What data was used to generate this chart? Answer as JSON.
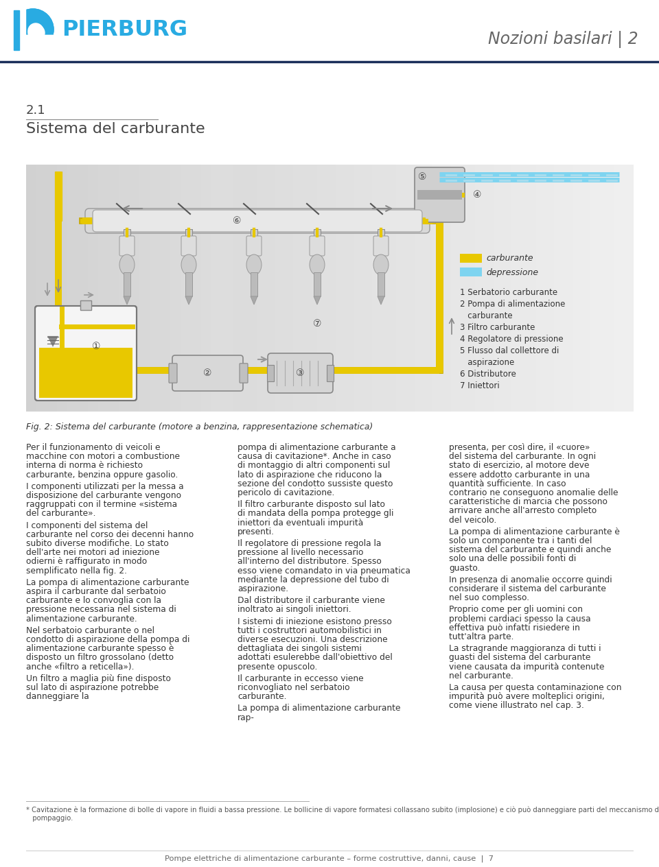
{
  "bg_color": "#ffffff",
  "header_line_color": "#1a2e5a",
  "logo_circle_color": "#29abe2",
  "logo_text": "PIERBURG",
  "logo_text_color": "#29abe2",
  "header_right_text": "Nozioni basilari | 2",
  "header_right_color": "#666666",
  "section_number": "2.1",
  "section_title": "Sistema del carburante",
  "section_title_color": "#444444",
  "section_number_color": "#444444",
  "section_line_color": "#888888",
  "diagram_caption": "Fig. 2: Sistema del carburante (motore a benzina, rappresentazione schematica)",
  "legend_fuel_color": "#e8c800",
  "legend_vacuum_color": "#7ed4f0",
  "legend_fuel_label": "carburante",
  "legend_vacuum_label": "depressione",
  "legend_items": [
    "1 Serbatorio carburante",
    "2 Pompa di alimentazione",
    "   carburante",
    "3 Filtro carburante",
    "4 Regolatore di pressione",
    "5 Flusso dal collettore di",
    "   aspirazione",
    "6 Distributore",
    "7 Iniettori"
  ],
  "col1_text": "Per il funzionamento di veicoli e macchine con motori a combustione interna di norma è richiesto carburante, benzina oppure gasolio.\nI componenti utilizzati per la messa a disposizione del carburante vengono raggruppati con il termine «sistema del carburante».\nI componenti del sistema del carburante nel corso dei decenni hanno subito diverse modifiche. Lo stato dell'arte nei motori ad iniezione odierni è raffigurato in modo semplificato nella fig. 2.\nLa pompa di alimentazione carburante aspira il carburante dal serbatoio carburante e lo convoglia con la pressione necessaria nel sistema di alimentazione carburante.\nNel serbatoio carburante o nel condotto di aspirazione della pompa di alimentazione carburante spesso è disposto un filtro grossolano (detto anche «filtro a reticella»).\nUn filtro a maglia più fine disposto sul lato di aspirazione potrebbe danneggiare la",
  "col2_text": "pompa di alimentazione carburante a causa di cavitazione*. Anche in caso di montaggio di altri componenti sul lato di aspirazione che riducono la sezione del condotto sussiste questo pericolo di cavitazione.\nIl filtro carburante disposto sul lato di mandata della pompa protegge gli iniettori da eventuali impurità presenti.\nIl regolatore di pressione regola la pressione al livello necessario all'interno del distributore. Spesso esso viene comandato in via pneumatica mediante la depressione del tubo di aspirazione.\nDal distributore il carburante viene inoltrato ai singoli iniettori.\nI sistemi di iniezione esistono presso tutti i costruttori automobilistici in diverse esecuzioni. Una descrizione dettagliata dei singoli sistemi adottati esulerebbe dall'obiettivo del presente opuscolo.\nIl carburante in eccesso viene riconvogliato nel serbatoio carburante.\nLa pompa di alimentazione carburante rap-",
  "col3_text": "presenta, per così dire, il «cuore» del sistema del carburante. In ogni stato di esercizio, al motore deve essere addotto carburante in una quantità sufficiente. In caso contrario ne conseguono anomalie delle caratteristiche di marcia che possono arrivare anche all'arresto completo del veicolo.\nLa pompa di alimentazione carburante è solo un componente tra i tanti del sistema del carburante e quindi anche solo una delle possibili fonti di guasto.\nIn presenza di anomalie occorre quindi considerare il sistema del carburante nel suo complesso.\nProprio come per gli uomini con problemi cardiaci spesso la causa effettiva può infatti risiedere in tutt'altra parte.\nLa stragrande maggioranza di tutti i guasti del sistema del carburante viene causata da impurità contenute nel carburante.\nLa causa per questa contaminazione con impurità può avere molteplici origini, come viene illustrato nel cap. 3.",
  "footnote_star": "* Cavitazione è la formazione di bolle di vapore in fluidi a bassa pressione. Le bollicine di vapore formatesi collassano subito (implosione) e ciò può danneggiare parti del meccanismo di",
  "footnote_cont": "   pompaggio.",
  "footer_text": "Pompe elettriche di alimentazione carburante – forme costruttive, danni, cause  |  7",
  "fuel_color": "#e8c800",
  "fuel_dark": "#c8aa00",
  "pipe_color": "#e8c800",
  "pipe_dark": "#c8aa00"
}
